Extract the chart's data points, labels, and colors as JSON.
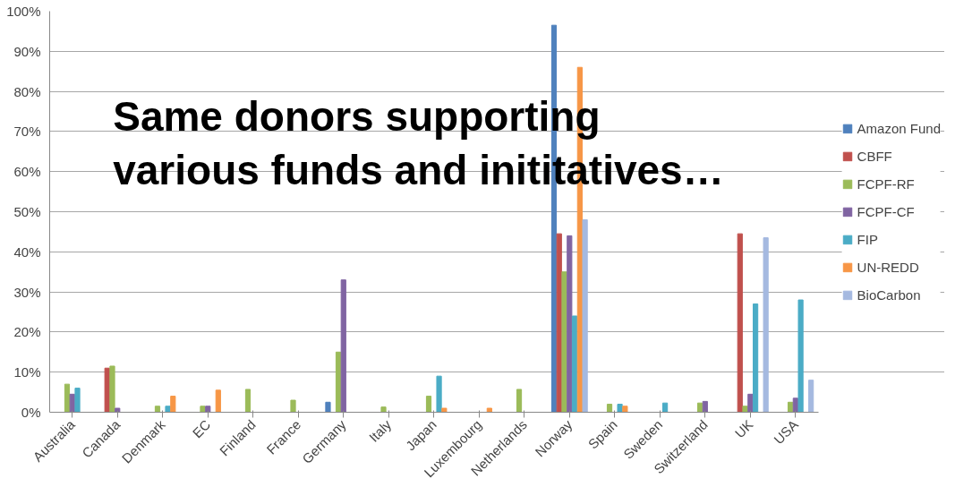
{
  "chart_data": {
    "type": "bar",
    "categories": [
      "Australia",
      "Canada",
      "Denmark",
      "EC",
      "Finland",
      "France",
      "Germany",
      "Italy",
      "Japan",
      "Luxembourg",
      "Netherlands",
      "Norway",
      "Spain",
      "Sweden",
      "Switzerland",
      "UK",
      "USA"
    ],
    "series": [
      {
        "name": "Amazon Fund",
        "color": "#4f81bd",
        "values": [
          null,
          null,
          null,
          null,
          null,
          null,
          2.5,
          null,
          null,
          null,
          null,
          96.5,
          null,
          null,
          null,
          null,
          null
        ]
      },
      {
        "name": "CBFF",
        "color": "#c0504d",
        "values": [
          null,
          11,
          null,
          null,
          null,
          null,
          null,
          null,
          null,
          null,
          null,
          44.5,
          null,
          null,
          null,
          44.5,
          null
        ]
      },
      {
        "name": "FCPF-RF",
        "color": "#9bbb59",
        "values": [
          7,
          11.5,
          1.5,
          1.5,
          5.7,
          3,
          15,
          1.3,
          4,
          null,
          5.7,
          35,
          2,
          null,
          2.3,
          1.5,
          2.5
        ]
      },
      {
        "name": "FCPF-CF",
        "color": "#8064a2",
        "values": [
          4.5,
          1,
          null,
          1.5,
          null,
          null,
          33,
          null,
          null,
          null,
          null,
          44,
          null,
          null,
          2.7,
          4.5,
          3.5
        ]
      },
      {
        "name": "FIP",
        "color": "#4bacc6",
        "values": [
          6,
          null,
          1.5,
          null,
          null,
          null,
          null,
          null,
          9,
          null,
          null,
          24,
          2,
          2.3,
          null,
          27,
          28
        ]
      },
      {
        "name": "UN-REDD",
        "color": "#f79646",
        "values": [
          null,
          null,
          4,
          5.5,
          null,
          null,
          null,
          null,
          1,
          1,
          null,
          86,
          1.5,
          null,
          null,
          null,
          null
        ]
      },
      {
        "name": "BioCarbon",
        "color": "#a5b9e0",
        "values": [
          null,
          null,
          null,
          null,
          null,
          null,
          null,
          null,
          null,
          null,
          null,
          48,
          null,
          null,
          null,
          43.5,
          8
        ]
      }
    ],
    "ylim": [
      0,
      100
    ],
    "yticks": [
      {
        "value": 0,
        "label": "0%"
      },
      {
        "value": 10,
        "label": "10%"
      },
      {
        "value": 20,
        "label": "20%"
      },
      {
        "value": 30,
        "label": "30%"
      },
      {
        "value": 40,
        "label": "40%"
      },
      {
        "value": 50,
        "label": "50%"
      },
      {
        "value": 60,
        "label": "60%"
      },
      {
        "value": 70,
        "label": "70%"
      },
      {
        "value": 80,
        "label": "80%"
      },
      {
        "value": 90,
        "label": "90%"
      },
      {
        "value": 100,
        "label": "100%"
      }
    ],
    "grid": "y",
    "legend": "right",
    "annotations": [
      "Same donors supporting\nvarious funds and inititatives…"
    ]
  }
}
